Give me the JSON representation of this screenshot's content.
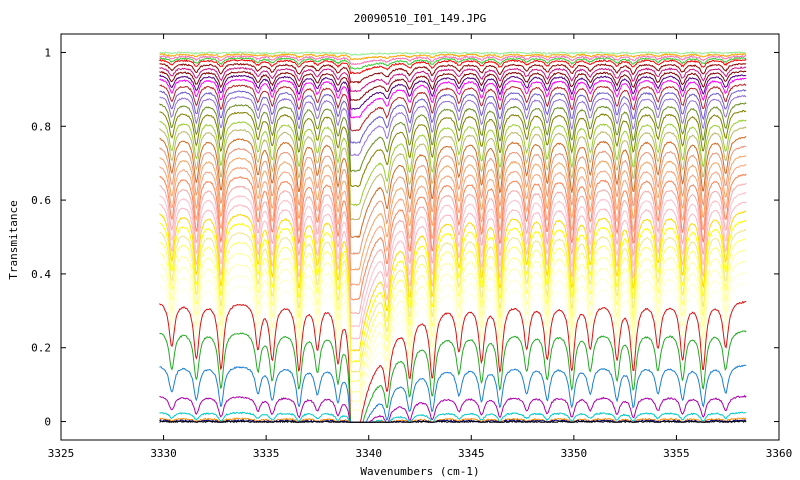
{
  "chart_data": {
    "type": "line",
    "title": "20090510_I01_149.JPG",
    "xlabel": "Wavenumbers (cm-1)",
    "ylabel": "Transmitance",
    "xlim": [
      3325,
      3360
    ],
    "ylim": [
      -0.05,
      1.05
    ],
    "x_ticks": [
      3325,
      3330,
      3335,
      3340,
      3345,
      3350,
      3355,
      3360
    ],
    "x_tick_labels": [
      "3325",
      "3330",
      "3335",
      "3340",
      "3345",
      "3350",
      "3355",
      "3360"
    ],
    "y_ticks": [
      0,
      0.2,
      0.4,
      0.6,
      0.8,
      1
    ],
    "y_tick_labels": [
      "0",
      "0.2",
      "0.4",
      "0.6",
      "0.8",
      "1"
    ],
    "grid": false,
    "x_data_range": [
      3329.8,
      3358.4
    ],
    "absorption_lines_x": [
      3330.4,
      3331.6,
      3332.8,
      3334.6,
      3335.3,
      3336.6,
      3337.5,
      3338.5,
      3339.2,
      3340.9,
      3342.0,
      3343.1,
      3344.4,
      3345.5,
      3346.4,
      3347.7,
      3348.7,
      3349.9,
      3350.8,
      3352.1,
      3352.9,
      3354.1,
      3355.3,
      3356.3,
      3357.4
    ],
    "series": [
      {
        "baseline": 1.0,
        "color": "#90ee90"
      },
      {
        "baseline": 0.995,
        "color": "#ffa500"
      },
      {
        "baseline": 0.99,
        "color": "#ff69b4"
      },
      {
        "baseline": 0.985,
        "color": "#32cd32"
      },
      {
        "baseline": 0.98,
        "color": "#ff0000"
      },
      {
        "baseline": 0.97,
        "color": "#8b0000"
      },
      {
        "baseline": 0.96,
        "color": "#c71585"
      },
      {
        "baseline": 0.95,
        "color": "#800000"
      },
      {
        "baseline": 0.94,
        "color": "#4b0082"
      },
      {
        "baseline": 0.93,
        "color": "#ff00ff"
      },
      {
        "baseline": 0.915,
        "color": "#b22222"
      },
      {
        "baseline": 0.9,
        "color": "#6a5acd"
      },
      {
        "baseline": 0.885,
        "color": "#9370db"
      },
      {
        "baseline": 0.865,
        "color": "#6b8e23"
      },
      {
        "baseline": 0.845,
        "color": "#808000"
      },
      {
        "baseline": 0.82,
        "color": "#9acd32"
      },
      {
        "baseline": 0.8,
        "color": "#bdb76b"
      },
      {
        "baseline": 0.775,
        "color": "#d2691e"
      },
      {
        "baseline": 0.75,
        "color": "#e9967a"
      },
      {
        "baseline": 0.725,
        "color": "#f4a460"
      },
      {
        "baseline": 0.7,
        "color": "#ffa07a"
      },
      {
        "baseline": 0.675,
        "color": "#ff7f50"
      },
      {
        "baseline": 0.65,
        "color": "#f5a9a9"
      },
      {
        "baseline": 0.625,
        "color": "#ffc0cb"
      },
      {
        "baseline": 0.6,
        "color": "#ffb6c1"
      },
      {
        "baseline": 0.575,
        "color": "#ffd700"
      },
      {
        "baseline": 0.55,
        "color": "#ffff00"
      },
      {
        "baseline": 0.525,
        "color": "#f0e68c"
      },
      {
        "baseline": 0.5,
        "color": "#ffff66"
      },
      {
        "baseline": 0.47,
        "color": "#ffff99"
      },
      {
        "baseline": 0.44,
        "color": "#ffffb3"
      },
      {
        "baseline": 0.41,
        "color": "#ffffcc"
      },
      {
        "baseline": 0.38,
        "color": "#ffffe0"
      },
      {
        "baseline": 0.33,
        "color": "#dd1111"
      },
      {
        "baseline": 0.25,
        "color": "#22aa22"
      },
      {
        "baseline": 0.155,
        "color": "#1a7fd6"
      },
      {
        "baseline": 0.07,
        "color": "#aa00aa"
      },
      {
        "baseline": 0.025,
        "color": "#00c8c8"
      },
      {
        "baseline": 0.008,
        "color": "#ff8c00"
      },
      {
        "baseline": 0.003,
        "color": "#000080"
      },
      {
        "baseline": 0.0,
        "color": "#000000"
      }
    ]
  }
}
